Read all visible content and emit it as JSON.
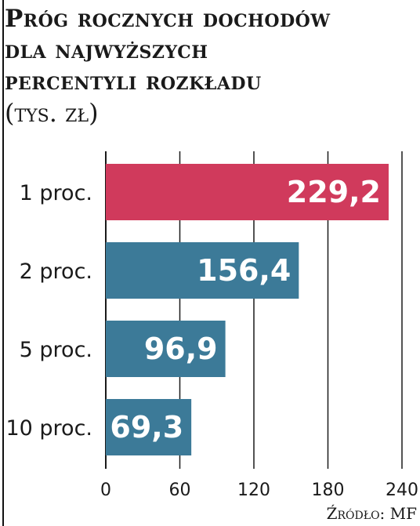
{
  "title_lines": [
    "Próg rocznych dochodów",
    "dla najwyższych",
    "percentyli rozkładu"
  ],
  "unit": "(tys. zł)",
  "source": "Źródło: MF",
  "colors": {
    "highlight": "#d03a5c",
    "bar": "#3c7a98",
    "grid": "#1a1a1a"
  },
  "chart_data": {
    "type": "bar",
    "orientation": "horizontal",
    "categories": [
      "1 proc.",
      "2 proc.",
      "5 proc.",
      "10 proc."
    ],
    "values": [
      229.2,
      156.4,
      96.9,
      69.3
    ],
    "value_labels": [
      "229,2",
      "156,4",
      "96,9",
      "69,3"
    ],
    "bar_colors": [
      "#d03a5c",
      "#3c7a98",
      "#3c7a98",
      "#3c7a98"
    ],
    "xlim": [
      0,
      240
    ],
    "xticks": [
      0,
      60,
      120,
      180,
      240
    ],
    "grid": true
  }
}
